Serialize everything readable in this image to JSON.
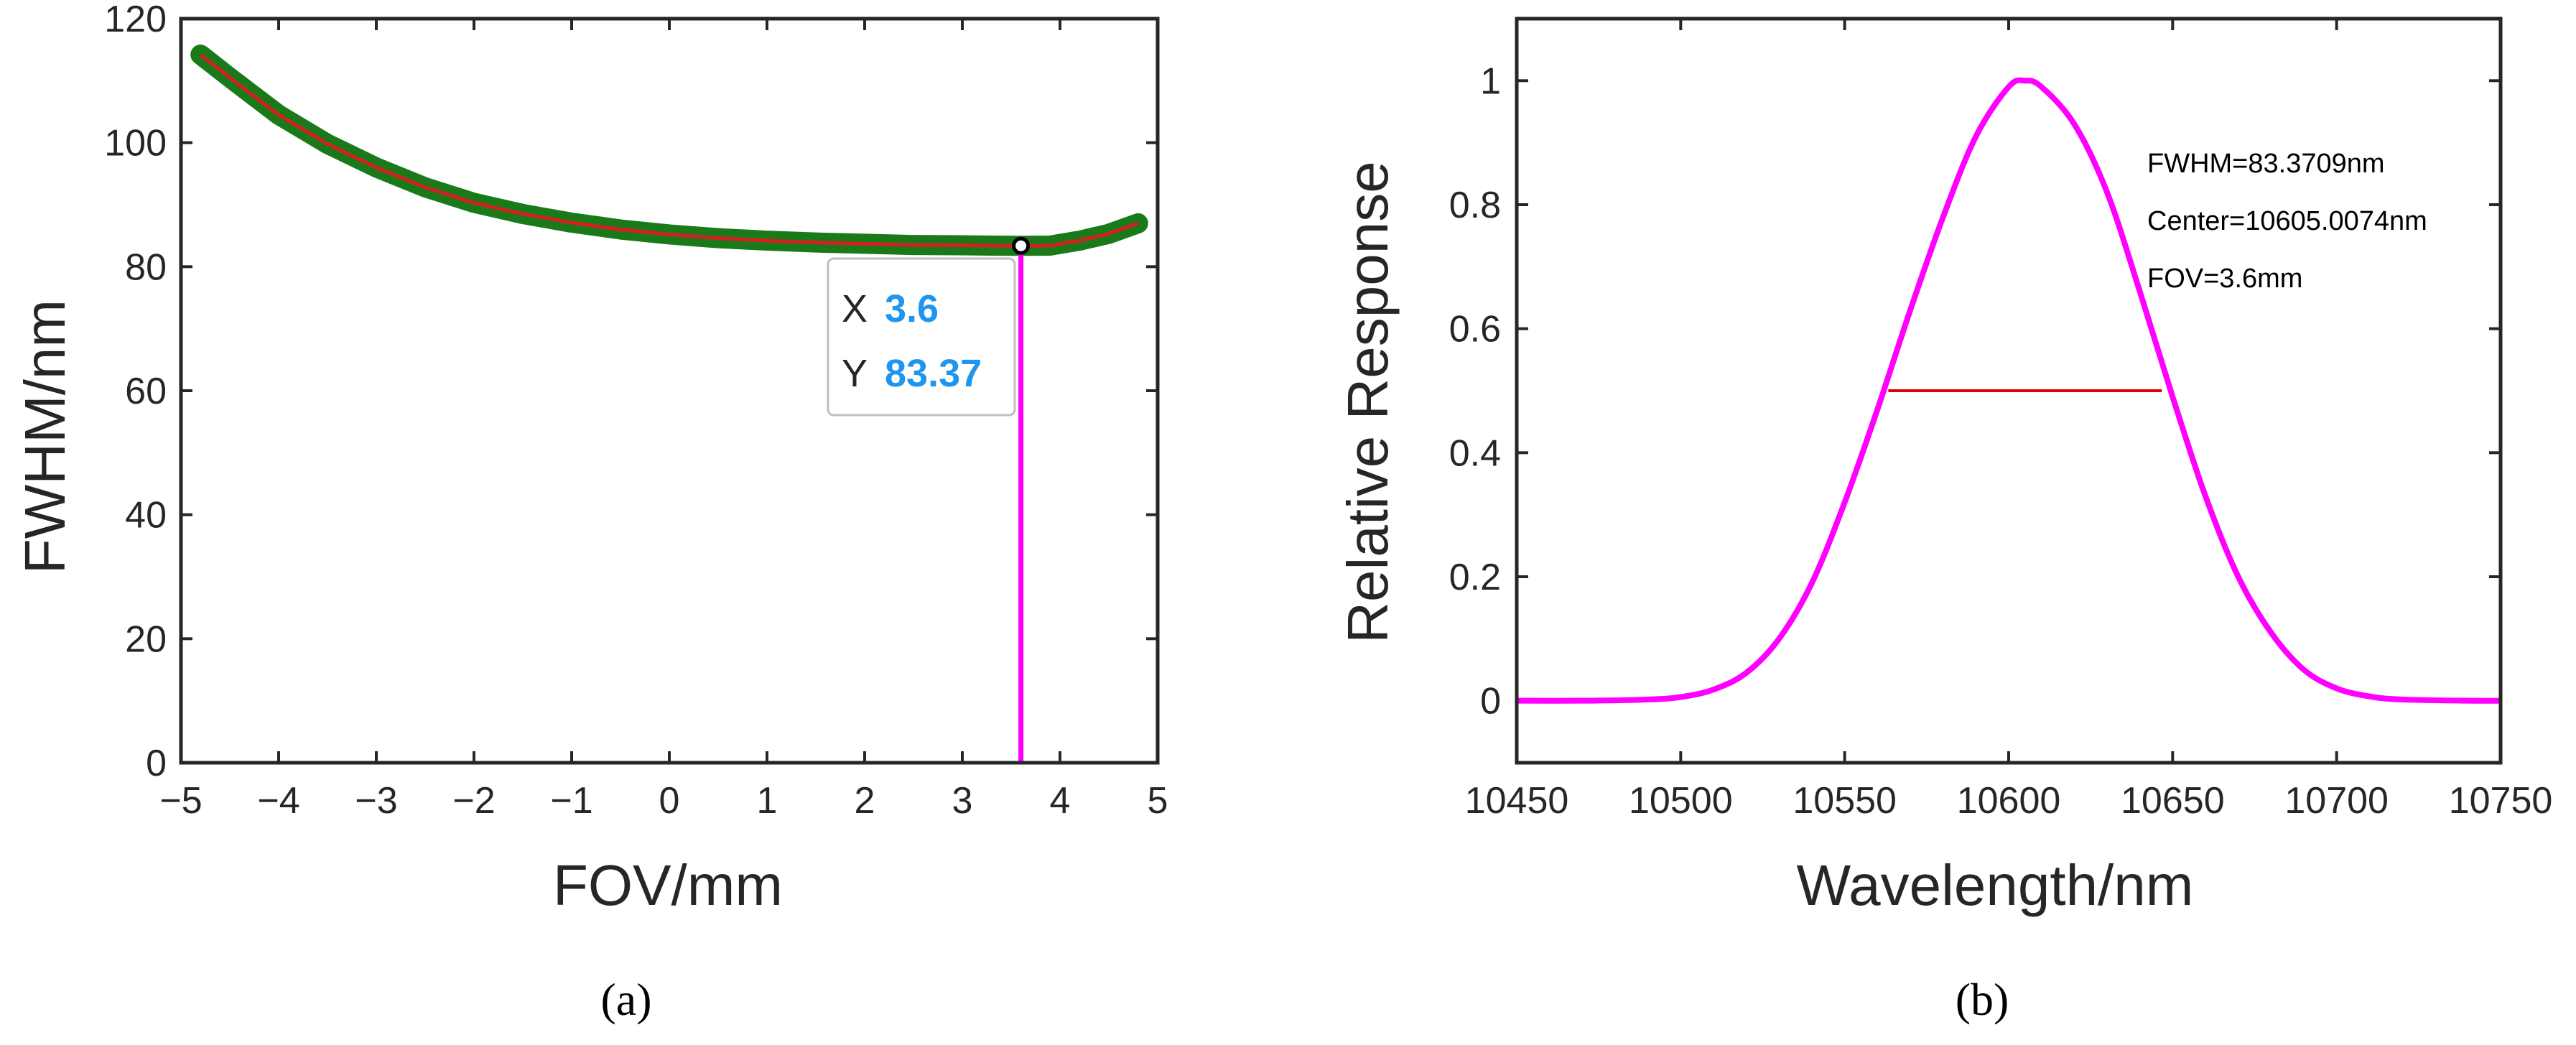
{
  "colors": {
    "curve_outer": "#1a7a1a",
    "curve_inner": "#d42020",
    "magenta": "#ff00ff",
    "fwhm_line": "#e00000",
    "tooltip_value": "#1e96f0",
    "axis": "#262626"
  },
  "chart_data": [
    {
      "type": "line",
      "title": "",
      "xlabel": "FOV/mm",
      "ylabel": "FWHM/nm",
      "xlim": [
        -5,
        5
      ],
      "ylim": [
        0,
        120
      ],
      "xticks": [
        -5,
        -4,
        -3,
        -2,
        -1,
        0,
        1,
        2,
        3,
        4,
        5
      ],
      "xtick_labels": [
        "−5",
        "−4",
        "−3",
        "−2",
        "−1",
        "0",
        "1",
        "2",
        "3",
        "4",
        "5"
      ],
      "yticks": [
        0,
        20,
        40,
        60,
        80,
        100,
        120
      ],
      "ytick_labels": [
        "0",
        "20",
        "40",
        "60",
        "80",
        "100",
        "120"
      ],
      "grid": false,
      "series": [
        {
          "name": "FWHM",
          "x": [
            -4.8,
            -4.5,
            -4.0,
            -3.5,
            -3.0,
            -2.5,
            -2.0,
            -1.5,
            -1.0,
            -0.5,
            0.0,
            0.5,
            1.0,
            1.5,
            2.0,
            2.5,
            3.0,
            3.3,
            3.6,
            3.9,
            4.2,
            4.5,
            4.8
          ],
          "y": [
            114.2,
            110.5,
            104.5,
            99.8,
            96.0,
            92.8,
            90.3,
            88.5,
            87.1,
            86.0,
            85.2,
            84.6,
            84.2,
            83.9,
            83.7,
            83.5,
            83.45,
            83.4,
            83.37,
            83.4,
            84.2,
            85.3,
            87.0
          ]
        }
      ],
      "marker_line": {
        "x": 3.6,
        "y_from": 0,
        "y_to": 83.37
      },
      "datatip": {
        "x_label": "X",
        "x_value": "3.6",
        "y_label": "Y",
        "y_value": "83.37"
      },
      "caption": "(a)"
    },
    {
      "type": "line",
      "title": "",
      "xlabel": "Wavelength/nm",
      "ylabel": "Relative Response",
      "xlim": [
        10450,
        10750
      ],
      "ylim": [
        -0.1,
        1.1
      ],
      "xticks": [
        10450,
        10500,
        10550,
        10600,
        10650,
        10700,
        10750
      ],
      "xtick_labels": [
        "10450",
        "10500",
        "10550",
        "10600",
        "10650",
        "10700",
        "10750"
      ],
      "yticks": [
        0,
        0.2,
        0.4,
        0.6,
        0.8,
        1
      ],
      "ytick_labels": [
        "0",
        "0.2",
        "0.4",
        "0.6",
        "0.8",
        "1"
      ],
      "grid": false,
      "series": [
        {
          "name": "Response",
          "x": [
            10450,
            10470,
            10490,
            10500,
            10510,
            10520,
            10530,
            10540,
            10550,
            10560,
            10570,
            10580,
            10590,
            10600,
            10605,
            10610,
            10620,
            10630,
            10640,
            10650,
            10660,
            10670,
            10680,
            10690,
            10700,
            10710,
            10720,
            10740,
            10750
          ],
          "y": [
            0.0,
            0.0,
            0.002,
            0.006,
            0.018,
            0.045,
            0.1,
            0.19,
            0.32,
            0.47,
            0.63,
            0.78,
            0.91,
            0.99,
            1.0,
            0.99,
            0.93,
            0.82,
            0.66,
            0.49,
            0.33,
            0.2,
            0.11,
            0.05,
            0.02,
            0.007,
            0.002,
            0.0,
            0.0
          ]
        }
      ],
      "fwhm_line": {
        "x_from": 10563.3,
        "x_to": 10646.7,
        "y": 0.5
      },
      "annotations": [
        "FWHM=83.3709nm",
        "Center=10605.0074nm",
        "FOV=3.6mm"
      ],
      "caption": "(b)"
    }
  ]
}
